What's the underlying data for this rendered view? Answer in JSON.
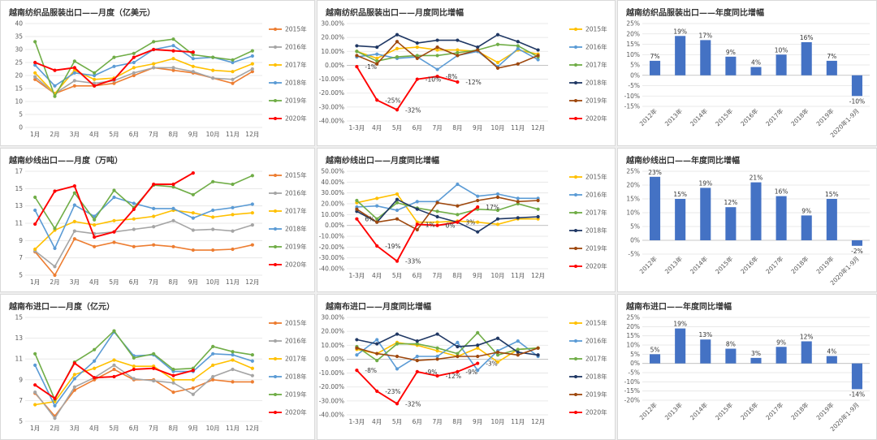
{
  "colors": {
    "2015": "#ED7D31",
    "2016": "#A5A5A5",
    "2017": "#FFC000",
    "2018": "#5B9BD5",
    "2019": "#70AD47",
    "2020": "#FF0000",
    "yoy_2015": "#FFC000",
    "yoy_2016": "#5B9BD5",
    "yoy_2017": "#70AD47",
    "yoy_2018": "#203864",
    "yoy_2019": "#9E480E",
    "yoy_2020": "#FF0000",
    "bar": "#4472C4"
  },
  "chart_data": [
    {
      "id": "textile-monthly",
      "type": "line",
      "title": "越南纺织品服装出口——月度（亿美元）",
      "categories": [
        "1月",
        "2月",
        "3月",
        "4月",
        "5月",
        "6月",
        "7月",
        "8月",
        "9月",
        "10月",
        "11月",
        "12月"
      ],
      "ylim": [
        0,
        40
      ],
      "yticks": [
        0,
        5,
        10,
        15,
        20,
        25,
        30,
        35,
        40
      ],
      "series": [
        {
          "name": "2015年",
          "color_key": "2015",
          "values": [
            18.5,
            13,
            16,
            16,
            17,
            20,
            23,
            22,
            21,
            19,
            17,
            21.5
          ]
        },
        {
          "name": "2016年",
          "color_key": "2016",
          "values": [
            19.5,
            13,
            18,
            17,
            18,
            21,
            23,
            23,
            21.5,
            19,
            18.5,
            22.5
          ]
        },
        {
          "name": "2017年",
          "color_key": "2017",
          "values": [
            21,
            13,
            22,
            18.5,
            19,
            23,
            24.5,
            26.5,
            23.5,
            22,
            21.5,
            24.5
          ]
        },
        {
          "name": "2018年",
          "color_key": "2018",
          "values": [
            24,
            16,
            21,
            20,
            23.5,
            25,
            30,
            31.5,
            26.5,
            27,
            25,
            27.5
          ]
        },
        {
          "name": "2019年",
          "color_key": "2019",
          "values": [
            33,
            12,
            25.5,
            21,
            27,
            28.5,
            33,
            34,
            28,
            27,
            26,
            29.5
          ]
        },
        {
          "name": "2020年",
          "color_key": "2020",
          "values": [
            25,
            22,
            23,
            16,
            18.5,
            27,
            30,
            29.5,
            29,
            null,
            null,
            null
          ]
        }
      ]
    },
    {
      "id": "textile-yoy-monthly",
      "type": "line",
      "title": "越南纺织品服装出口——月度同比增幅",
      "categories": [
        "1-3月",
        "4月",
        "5月",
        "6月",
        "7月",
        "8月",
        "9月",
        "10月",
        "11月",
        "12月"
      ],
      "ylim": [
        -40,
        30
      ],
      "yticks": [
        -40,
        -30,
        -20,
        -10,
        0,
        10,
        20,
        30
      ],
      "ytick_labels": [
        "-40.00%",
        "-30.00%",
        "-20.00%",
        "-10.00%",
        "0.00%",
        "10.00%",
        "20.00%",
        "30.00%"
      ],
      "series": [
        {
          "name": "2015年",
          "color_key": "yoy_2015",
          "values": [
            10,
            5,
            12,
            13,
            11,
            11,
            10,
            2,
            11,
            8
          ]
        },
        {
          "name": "2016年",
          "color_key": "yoy_2016",
          "values": [
            6,
            8,
            5,
            6,
            -3,
            7,
            10,
            -1,
            12,
            4
          ]
        },
        {
          "name": "2017年",
          "color_key": "yoy_2017",
          "values": [
            10,
            3,
            6,
            7,
            7,
            9,
            11,
            15,
            14,
            6
          ]
        },
        {
          "name": "2018年",
          "color_key": "yoy_2018",
          "values": [
            14,
            13,
            22,
            16,
            18,
            18,
            13,
            22,
            17,
            11
          ]
        },
        {
          "name": "2019年",
          "color_key": "yoy_2019",
          "values": [
            7,
            1,
            17,
            5,
            13,
            7,
            11,
            -2,
            1,
            7
          ]
        },
        {
          "name": "2020年",
          "color_key": "yoy_2020",
          "values": [
            -1,
            -25,
            -32,
            -10,
            -8,
            -12,
            null,
            null,
            null,
            null
          ],
          "labels": [
            "-1%",
            "-25%",
            "-32%",
            "-10%",
            "-8%",
            "-12%",
            null,
            null,
            null,
            null
          ]
        }
      ]
    },
    {
      "id": "textile-yoy-annual",
      "type": "bar",
      "title": "越南纺织品服装出口——年度同比增幅",
      "categories": [
        "2012年",
        "2013年",
        "2014年",
        "2015年",
        "2016年",
        "2017年",
        "2018年",
        "2019年",
        "2020年1-9月"
      ],
      "values": [
        7,
        19,
        17,
        9,
        4,
        10,
        16,
        7,
        -10
      ],
      "data_labels": [
        "7%",
        "19%",
        "17%",
        "9%",
        "4%",
        "10%",
        "16%",
        "7%",
        "-10%"
      ],
      "ylim": [
        -15,
        25
      ],
      "yticks": [
        -15,
        -10,
        -5,
        0,
        5,
        10,
        15,
        20,
        25
      ],
      "ytick_labels": [
        "-15%",
        "-10%",
        "-5%",
        "0%",
        "5%",
        "10%",
        "15%",
        "20%",
        "25%"
      ]
    },
    {
      "id": "yarn-monthly",
      "type": "line",
      "title": "越南纱线出口——月度（万吨）",
      "categories": [
        "1月",
        "2月",
        "3月",
        "4月",
        "5月",
        "6月",
        "7月",
        "8月",
        "9月",
        "10月",
        "11月",
        "12月"
      ],
      "ylim": [
        5,
        17
      ],
      "yticks": [
        5,
        7,
        9,
        11,
        13,
        15,
        17
      ],
      "series": [
        {
          "name": "2015年",
          "color_key": "2015",
          "values": [
            7.7,
            5,
            9.2,
            8.3,
            8.8,
            8.3,
            8.5,
            8.3,
            7.9,
            7.9,
            8,
            8.5
          ]
        },
        {
          "name": "2016年",
          "color_key": "2016",
          "values": [
            7.8,
            6,
            10.1,
            9.8,
            10,
            10.3,
            10.6,
            11.3,
            10.2,
            10.3,
            10.1,
            10.8
          ]
        },
        {
          "name": "2017年",
          "color_key": "2017",
          "values": [
            8,
            10.2,
            11.2,
            10.8,
            11.3,
            11.5,
            11.8,
            12.5,
            12.2,
            11.7,
            12,
            12.2
          ]
        },
        {
          "name": "2018年",
          "color_key": "2018",
          "values": [
            12.5,
            8.1,
            13.1,
            11.8,
            14,
            13.3,
            12.7,
            12.7,
            11.6,
            12.5,
            12.8,
            13.2
          ]
        },
        {
          "name": "2019年",
          "color_key": "2019",
          "values": [
            14,
            10.4,
            14.5,
            11.4,
            14.8,
            12.8,
            15.4,
            15.2,
            14.3,
            15.8,
            15.5,
            16.5
          ]
        },
        {
          "name": "2020年",
          "color_key": "2020",
          "values": [
            10.9,
            14.7,
            15.3,
            9.4,
            10,
            12.6,
            15.5,
            15.5,
            16.8,
            null,
            null,
            null
          ]
        }
      ]
    },
    {
      "id": "yarn-yoy-monthly",
      "type": "line",
      "title": "越南纱线出口——月度同比增幅",
      "categories": [
        "1-3月",
        "4月",
        "5月",
        "6月",
        "7月",
        "8月",
        "9月",
        "10月",
        "11月",
        "12月"
      ],
      "ylim": [
        -40,
        50
      ],
      "yticks": [
        -40,
        -30,
        -20,
        -10,
        0,
        10,
        20,
        30,
        40,
        50
      ],
      "ytick_labels": [
        "-40.00%",
        "-30.00%",
        "-20.00%",
        "-10.00%",
        "0.00%",
        "10.00%",
        "20.00%",
        "30.00%",
        "40.00%",
        "50.00%"
      ],
      "series": [
        {
          "name": "2015年",
          "color_key": "yoy_2015",
          "values": [
            21,
            25,
            29,
            3,
            3,
            4,
            3,
            1,
            6,
            6
          ]
        },
        {
          "name": "2016年",
          "color_key": "yoy_2016",
          "values": [
            17,
            18,
            14,
            22,
            22,
            38,
            27,
            29,
            25,
            25
          ]
        },
        {
          "name": "2017年",
          "color_key": "yoy_2017",
          "values": [
            23,
            6,
            21,
            16,
            13,
            10,
            15,
            14,
            20,
            15
          ]
        },
        {
          "name": "2018年",
          "color_key": "yoy_2018",
          "values": [
            13,
            3,
            24,
            15,
            8,
            3,
            -6,
            6,
            7,
            8
          ]
        },
        {
          "name": "2019年",
          "color_key": "yoy_2019",
          "values": [
            15,
            3,
            6,
            -4,
            21,
            18,
            23,
            26,
            22,
            23
          ]
        },
        {
          "name": "2020年",
          "color_key": "yoy_2020",
          "values": [
            6,
            -19,
            -33,
            1,
            0,
            3,
            17,
            null,
            null,
            null
          ],
          "labels": [
            "6%",
            "-19%",
            "-33%",
            "1%",
            "0%",
            "3%",
            "17%",
            null,
            null,
            null
          ]
        }
      ]
    },
    {
      "id": "yarn-yoy-annual",
      "type": "bar",
      "title": "越南纱线出口——年度同比增幅",
      "categories": [
        "2012年",
        "2013年",
        "2014年",
        "2015年",
        "2016年",
        "2017年",
        "2018年",
        "2019年",
        "2020年1-9月"
      ],
      "values": [
        23,
        15,
        19,
        12,
        21,
        16,
        9,
        15,
        -2
      ],
      "data_labels": [
        "23%",
        "15%",
        "19%",
        "12%",
        "21%",
        "16%",
        "9%",
        "15%",
        "-2%"
      ],
      "ylim": [
        -5,
        25
      ],
      "yticks": [
        -5,
        0,
        5,
        10,
        15,
        20,
        25
      ],
      "ytick_labels": [
        "-5%",
        "0%",
        "5%",
        "10%",
        "15%",
        "20%",
        "25%"
      ]
    },
    {
      "id": "fabric-monthly",
      "type": "line",
      "title": "越南布进口——月度（亿元）",
      "categories": [
        "1月",
        "2月",
        "3月",
        "4月",
        "5月",
        "6月",
        "7月",
        "8月",
        "9月",
        "10月",
        "11月",
        "12月"
      ],
      "ylim": [
        5,
        15
      ],
      "yticks": [
        5,
        7,
        9,
        11,
        13,
        15
      ],
      "series": [
        {
          "name": "2015年",
          "color_key": "2015",
          "values": [
            7.7,
            5.5,
            8,
            9,
            10,
            9,
            9,
            7.8,
            8.2,
            9,
            8.8,
            8.8
          ]
        },
        {
          "name": "2016年",
          "color_key": "2016",
          "values": [
            7.8,
            5.3,
            8.3,
            9.2,
            10.4,
            9.1,
            8.9,
            8.7,
            7.6,
            9.3,
            10,
            9.4
          ]
        },
        {
          "name": "2017年",
          "color_key": "2017",
          "values": [
            6.6,
            6.9,
            9.5,
            10.1,
            10.9,
            10.3,
            10.3,
            9,
            9,
            10.4,
            10.9,
            10.1
          ]
        },
        {
          "name": "2018年",
          "color_key": "2018",
          "values": [
            10.4,
            6.5,
            9.1,
            10.8,
            13.6,
            11.3,
            11.4,
            9.8,
            9.8,
            11.5,
            11.4,
            10.8
          ]
        },
        {
          "name": "2019年",
          "color_key": "2019",
          "values": [
            11.5,
            7.1,
            10.7,
            11.9,
            13.7,
            11.1,
            11.5,
            10,
            10.1,
            12.2,
            11.7,
            11.4
          ]
        },
        {
          "name": "2020年",
          "color_key": "2020",
          "values": [
            8.5,
            7.2,
            10.6,
            9.2,
            9.3,
            10,
            10.1,
            9.4,
            9.9,
            null,
            null,
            null
          ]
        }
      ]
    },
    {
      "id": "fabric-yoy-monthly",
      "type": "line",
      "title": "越南布进口——月度同比增幅",
      "categories": [
        "1-3月",
        "4月",
        "5月",
        "6月",
        "7月",
        "8月",
        "9月",
        "10月",
        "11月",
        "12月"
      ],
      "ylim": [
        -40,
        30
      ],
      "yticks": [
        -40,
        -30,
        -20,
        -10,
        0,
        10,
        20,
        30
      ],
      "ytick_labels": [
        "-40.00%",
        "-30.00%",
        "-20.00%",
        "-10.00%",
        "0.00%",
        "10.00%",
        "20.00%",
        "30.00%"
      ],
      "series": [
        {
          "name": "2015年",
          "color_key": "yoy_2015",
          "values": [
            7,
            4,
            12,
            10,
            6,
            2,
            8,
            -2,
            7,
            8
          ]
        },
        {
          "name": "2016年",
          "color_key": "yoy_2016",
          "values": [
            3,
            14,
            -7,
            2,
            2,
            12,
            -8,
            6,
            13,
            2
          ]
        },
        {
          "name": "2017年",
          "color_key": "yoy_2017",
          "values": [
            9,
            -1,
            11,
            11,
            8,
            4,
            19,
            3,
            7,
            8
          ]
        },
        {
          "name": "2018年",
          "color_key": "yoy_2018",
          "values": [
            14,
            11,
            18,
            13,
            18,
            9,
            10,
            15,
            5,
            3
          ]
        },
        {
          "name": "2019年",
          "color_key": "yoy_2019",
          "values": [
            8,
            4,
            2,
            -1,
            0,
            2,
            2,
            5,
            3,
            8
          ]
        },
        {
          "name": "2020年",
          "color_key": "yoy_2020",
          "values": [
            -8,
            -23,
            -32,
            -9,
            -12,
            -9,
            -3,
            null,
            null,
            null
          ],
          "labels": [
            "-8%",
            "-23%",
            "-32%",
            "-9%",
            "-12%",
            "-9%",
            "-3%",
            null,
            null,
            null
          ]
        }
      ]
    },
    {
      "id": "fabric-yoy-annual",
      "type": "bar",
      "title": "越南布进口——年度同比增幅",
      "categories": [
        "2012年",
        "2013年",
        "2014年",
        "2015年",
        "2016年",
        "2017年",
        "2018年",
        "2019年",
        "2020年1-9月"
      ],
      "values": [
        5,
        19,
        13,
        8,
        3,
        9,
        12,
        4,
        -14
      ],
      "data_labels": [
        "5%",
        "19%",
        "13%",
        "8%",
        "3%",
        "9%",
        "12%",
        "4%",
        "-14%"
      ],
      "ylim": [
        -20,
        25
      ],
      "yticks": [
        -20,
        -15,
        -10,
        -5,
        0,
        5,
        10,
        15,
        20,
        25
      ],
      "ytick_labels": [
        "-20%",
        "-15%",
        "-10%",
        "-5%",
        "0%",
        "5%",
        "10%",
        "15%",
        "20%",
        "25%"
      ]
    }
  ]
}
